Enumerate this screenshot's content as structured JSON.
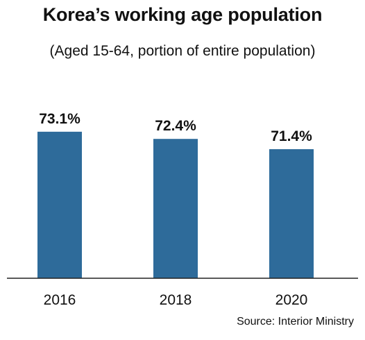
{
  "chart_data": {
    "type": "bar",
    "title": "Korea’s working age population",
    "subtitle": "(Aged 15-64, portion of entire population)",
    "categories": [
      "2016",
      "2018",
      "2020"
    ],
    "values": [
      73.1,
      72.4,
      71.4
    ],
    "value_labels": [
      "73.1%",
      "72.4%",
      "71.4%"
    ],
    "unit": "%",
    "xlabel": "",
    "ylabel": "",
    "ylim": [
      0,
      100
    ],
    "grid": false,
    "legend": "none",
    "bar_color": "#2e6b9a",
    "source": "Source: Interior Ministry"
  }
}
